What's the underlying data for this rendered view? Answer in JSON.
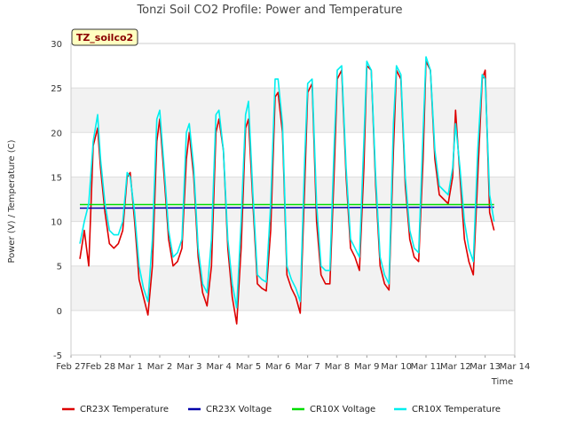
{
  "chart_data": {
    "type": "line",
    "title": "Tonzi Soil CO2 Profile: Power and Temperature",
    "xlabel": "Time",
    "ylabel": "Power (V) / Temperature (C)",
    "badge": "TZ_soilco2",
    "ylim": [
      -5,
      30
    ],
    "yticks": [
      -5,
      0,
      5,
      10,
      15,
      20,
      25,
      30
    ],
    "xlim": [
      0,
      15
    ],
    "xticks": [
      {
        "x": 0,
        "label": "Feb 27"
      },
      {
        "x": 1,
        "label": "Feb 28"
      },
      {
        "x": 2,
        "label": "Mar 1"
      },
      {
        "x": 3,
        "label": "Mar 2"
      },
      {
        "x": 4,
        "label": "Mar 3"
      },
      {
        "x": 5,
        "label": "Mar 4"
      },
      {
        "x": 6,
        "label": "Mar 5"
      },
      {
        "x": 7,
        "label": "Mar 6"
      },
      {
        "x": 8,
        "label": "Mar 7"
      },
      {
        "x": 9,
        "label": "Mar 8"
      },
      {
        "x": 10,
        "label": "Mar 9"
      },
      {
        "x": 11,
        "label": "Mar 10"
      },
      {
        "x": 12,
        "label": "Mar 11"
      },
      {
        "x": 13,
        "label": "Mar 12"
      },
      {
        "x": 14,
        "label": "Mar 13"
      },
      {
        "x": 15,
        "label": "Mar 14"
      }
    ],
    "grid": true,
    "legend_position": "bottom",
    "series": [
      {
        "name": "CR23X Temperature",
        "color": "#dd0000",
        "x": [
          0.3,
          0.45,
          0.6,
          0.75,
          0.9,
          1.0,
          1.15,
          1.3,
          1.45,
          1.6,
          1.75,
          1.9,
          2.0,
          2.15,
          2.3,
          2.45,
          2.6,
          2.75,
          2.9,
          3.0,
          3.15,
          3.3,
          3.45,
          3.6,
          3.75,
          3.9,
          4.0,
          4.15,
          4.3,
          4.45,
          4.6,
          4.75,
          4.9,
          5.0,
          5.15,
          5.3,
          5.45,
          5.6,
          5.75,
          5.9,
          6.0,
          6.15,
          6.3,
          6.45,
          6.6,
          6.75,
          6.9,
          7.0,
          7.15,
          7.3,
          7.45,
          7.6,
          7.75,
          7.9,
          8.0,
          8.15,
          8.3,
          8.45,
          8.6,
          8.75,
          8.9,
          9.0,
          9.15,
          9.3,
          9.45,
          9.6,
          9.75,
          9.9,
          10.0,
          10.15,
          10.3,
          10.45,
          10.6,
          10.75,
          10.9,
          11.0,
          11.15,
          11.3,
          11.45,
          11.6,
          11.75,
          11.9,
          12.0,
          12.15,
          12.3,
          12.45,
          12.6,
          12.75,
          12.9,
          13.0,
          13.15,
          13.3,
          13.45,
          13.6,
          13.75,
          13.9,
          14.0,
          14.15,
          14.3
        ],
        "y": [
          5.8,
          9.0,
          5.0,
          18.5,
          20.5,
          16.0,
          11.0,
          7.5,
          7.0,
          7.5,
          9.0,
          15.0,
          15.5,
          10.0,
          3.5,
          1.5,
          -0.5,
          5.0,
          19.0,
          21.5,
          15.0,
          8.0,
          5.0,
          5.5,
          7.0,
          17.0,
          20.0,
          15.0,
          6.0,
          2.0,
          0.5,
          5.0,
          20.0,
          21.5,
          18.0,
          7.0,
          1.5,
          -1.5,
          7.0,
          20.5,
          21.5,
          12.0,
          3.0,
          2.5,
          2.2,
          9.0,
          24.0,
          24.5,
          20.0,
          4.0,
          2.5,
          1.5,
          -0.3,
          14.0,
          24.5,
          25.5,
          10.0,
          4.0,
          3.0,
          3.0,
          16.0,
          26.0,
          27.0,
          15.0,
          7.0,
          6.0,
          4.5,
          16.0,
          27.5,
          27.0,
          14.0,
          5.0,
          3.0,
          2.3,
          18.0,
          27.0,
          26.0,
          14.0,
          8.0,
          6.0,
          5.5,
          17.0,
          28.0,
          27.0,
          17.0,
          13.0,
          12.5,
          12.0,
          15.0,
          22.5,
          15.0,
          8.0,
          5.5,
          4.0,
          15.0,
          26.0,
          27.0,
          11.0,
          9.0
        ]
      },
      {
        "name": "CR23X Voltage",
        "color": "#0000aa",
        "x": [
          0.3,
          14.3
        ],
        "y": [
          11.5,
          11.6
        ]
      },
      {
        "name": "CR10X Voltage",
        "color": "#00dd00",
        "x": [
          0.3,
          14.3
        ],
        "y": [
          11.9,
          11.9
        ]
      },
      {
        "name": "CR10X Temperature",
        "color": "#00eeee",
        "x": [
          0.3,
          0.45,
          0.6,
          0.75,
          0.9,
          1.0,
          1.15,
          1.3,
          1.45,
          1.6,
          1.75,
          1.9,
          2.0,
          2.15,
          2.3,
          2.45,
          2.6,
          2.75,
          2.9,
          3.0,
          3.15,
          3.3,
          3.45,
          3.6,
          3.75,
          3.9,
          4.0,
          4.15,
          4.3,
          4.45,
          4.6,
          4.75,
          4.9,
          5.0,
          5.15,
          5.3,
          5.45,
          5.6,
          5.75,
          5.9,
          6.0,
          6.15,
          6.3,
          6.45,
          6.6,
          6.75,
          6.9,
          7.0,
          7.15,
          7.3,
          7.45,
          7.6,
          7.75,
          7.9,
          8.0,
          8.15,
          8.3,
          8.45,
          8.6,
          8.75,
          8.9,
          9.0,
          9.15,
          9.3,
          9.45,
          9.6,
          9.75,
          9.9,
          10.0,
          10.15,
          10.3,
          10.45,
          10.6,
          10.75,
          10.9,
          11.0,
          11.15,
          11.3,
          11.45,
          11.6,
          11.75,
          11.9,
          12.0,
          12.15,
          12.3,
          12.45,
          12.6,
          12.75,
          12.9,
          13.0,
          13.15,
          13.3,
          13.45,
          13.6,
          13.75,
          13.9,
          14.0,
          14.15,
          14.3
        ],
        "y": [
          7.5,
          10.0,
          12.0,
          19.0,
          22.0,
          17.0,
          12.0,
          9.0,
          8.5,
          8.5,
          10.0,
          15.5,
          15.0,
          11.0,
          5.0,
          2.5,
          1.0,
          8.0,
          21.5,
          22.5,
          16.0,
          9.0,
          6.0,
          6.5,
          8.0,
          20.0,
          21.0,
          16.0,
          7.0,
          3.0,
          2.0,
          8.0,
          22.0,
          22.5,
          18.0,
          8.0,
          3.0,
          0.3,
          10.0,
          22.0,
          23.5,
          13.0,
          4.0,
          3.5,
          3.2,
          12.0,
          26.0,
          26.0,
          21.0,
          5.0,
          3.5,
          2.5,
          1.0,
          17.0,
          25.5,
          26.0,
          12.0,
          5.0,
          4.5,
          4.5,
          19.0,
          27.0,
          27.5,
          16.0,
          8.0,
          7.0,
          6.0,
          19.0,
          28.0,
          27.0,
          15.0,
          6.0,
          4.0,
          3.0,
          21.0,
          27.5,
          26.5,
          15.0,
          9.0,
          7.0,
          6.5,
          20.0,
          28.5,
          27.0,
          18.0,
          14.0,
          13.5,
          13.0,
          16.0,
          21.0,
          16.0,
          10.0,
          7.0,
          5.5,
          18.0,
          26.5,
          26.0,
          13.0,
          10.0
        ]
      }
    ]
  }
}
